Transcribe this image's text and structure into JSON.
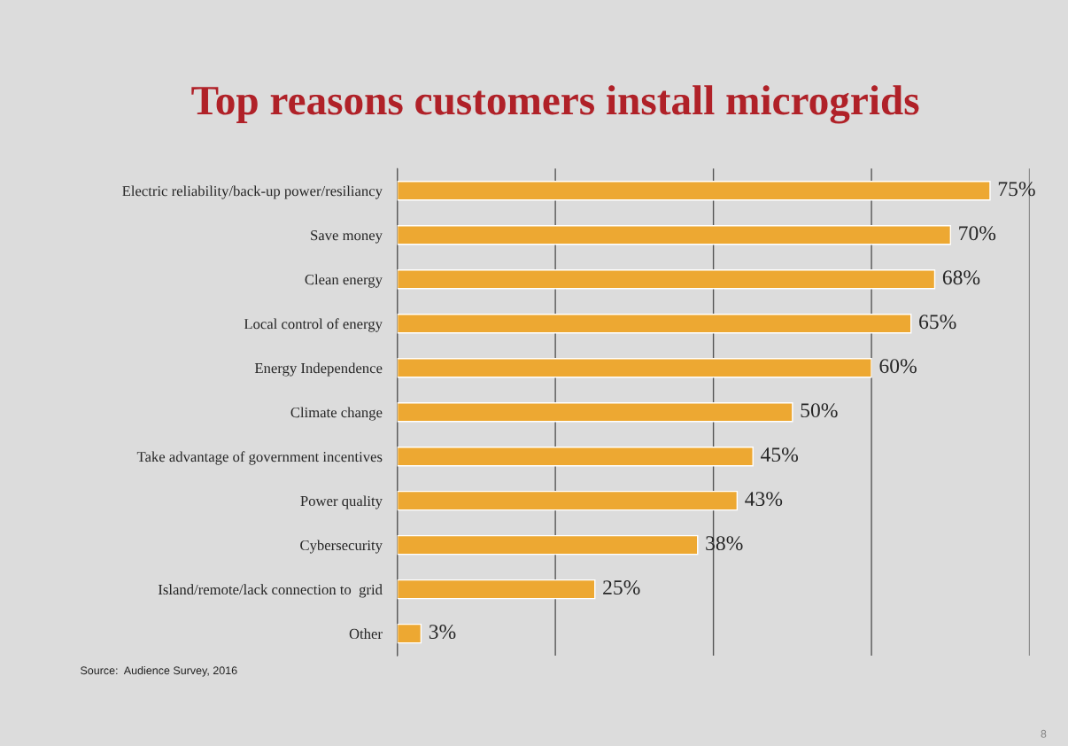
{
  "chart_data": {
    "type": "bar",
    "orientation": "horizontal",
    "title": "Top reasons customers install microgrids",
    "categories": [
      "Electric reliability/back-up power/resiliancy",
      "Save money",
      "Clean energy",
      "Local control of energy",
      "Energy Independence",
      "Climate change",
      "Take advantage of government incentives",
      "Power quality",
      "Cybersecurity",
      "Island/remote/lack connection to  grid",
      "Other"
    ],
    "values": [
      75,
      70,
      68,
      65,
      60,
      50,
      45,
      43,
      38,
      25,
      3
    ],
    "value_labels": [
      "75%",
      "70%",
      "68%",
      "65%",
      "60%",
      "50%",
      "45%",
      "43%",
      "38%",
      "25%",
      "3%"
    ],
    "color": "#eda832",
    "xlim": [
      0,
      80
    ],
    "xticks": [
      {
        "value": 0,
        "label": null
      },
      {
        "value": 20,
        "label": null
      },
      {
        "value": 40,
        "label": null
      },
      {
        "value": 60,
        "label": null
      },
      {
        "value": 80,
        "label": null
      }
    ],
    "tick_labels": "y",
    "grid": "x",
    "legend": false,
    "annotations": [
      "Source:  Audience Survey, 2016",
      "8"
    ]
  }
}
